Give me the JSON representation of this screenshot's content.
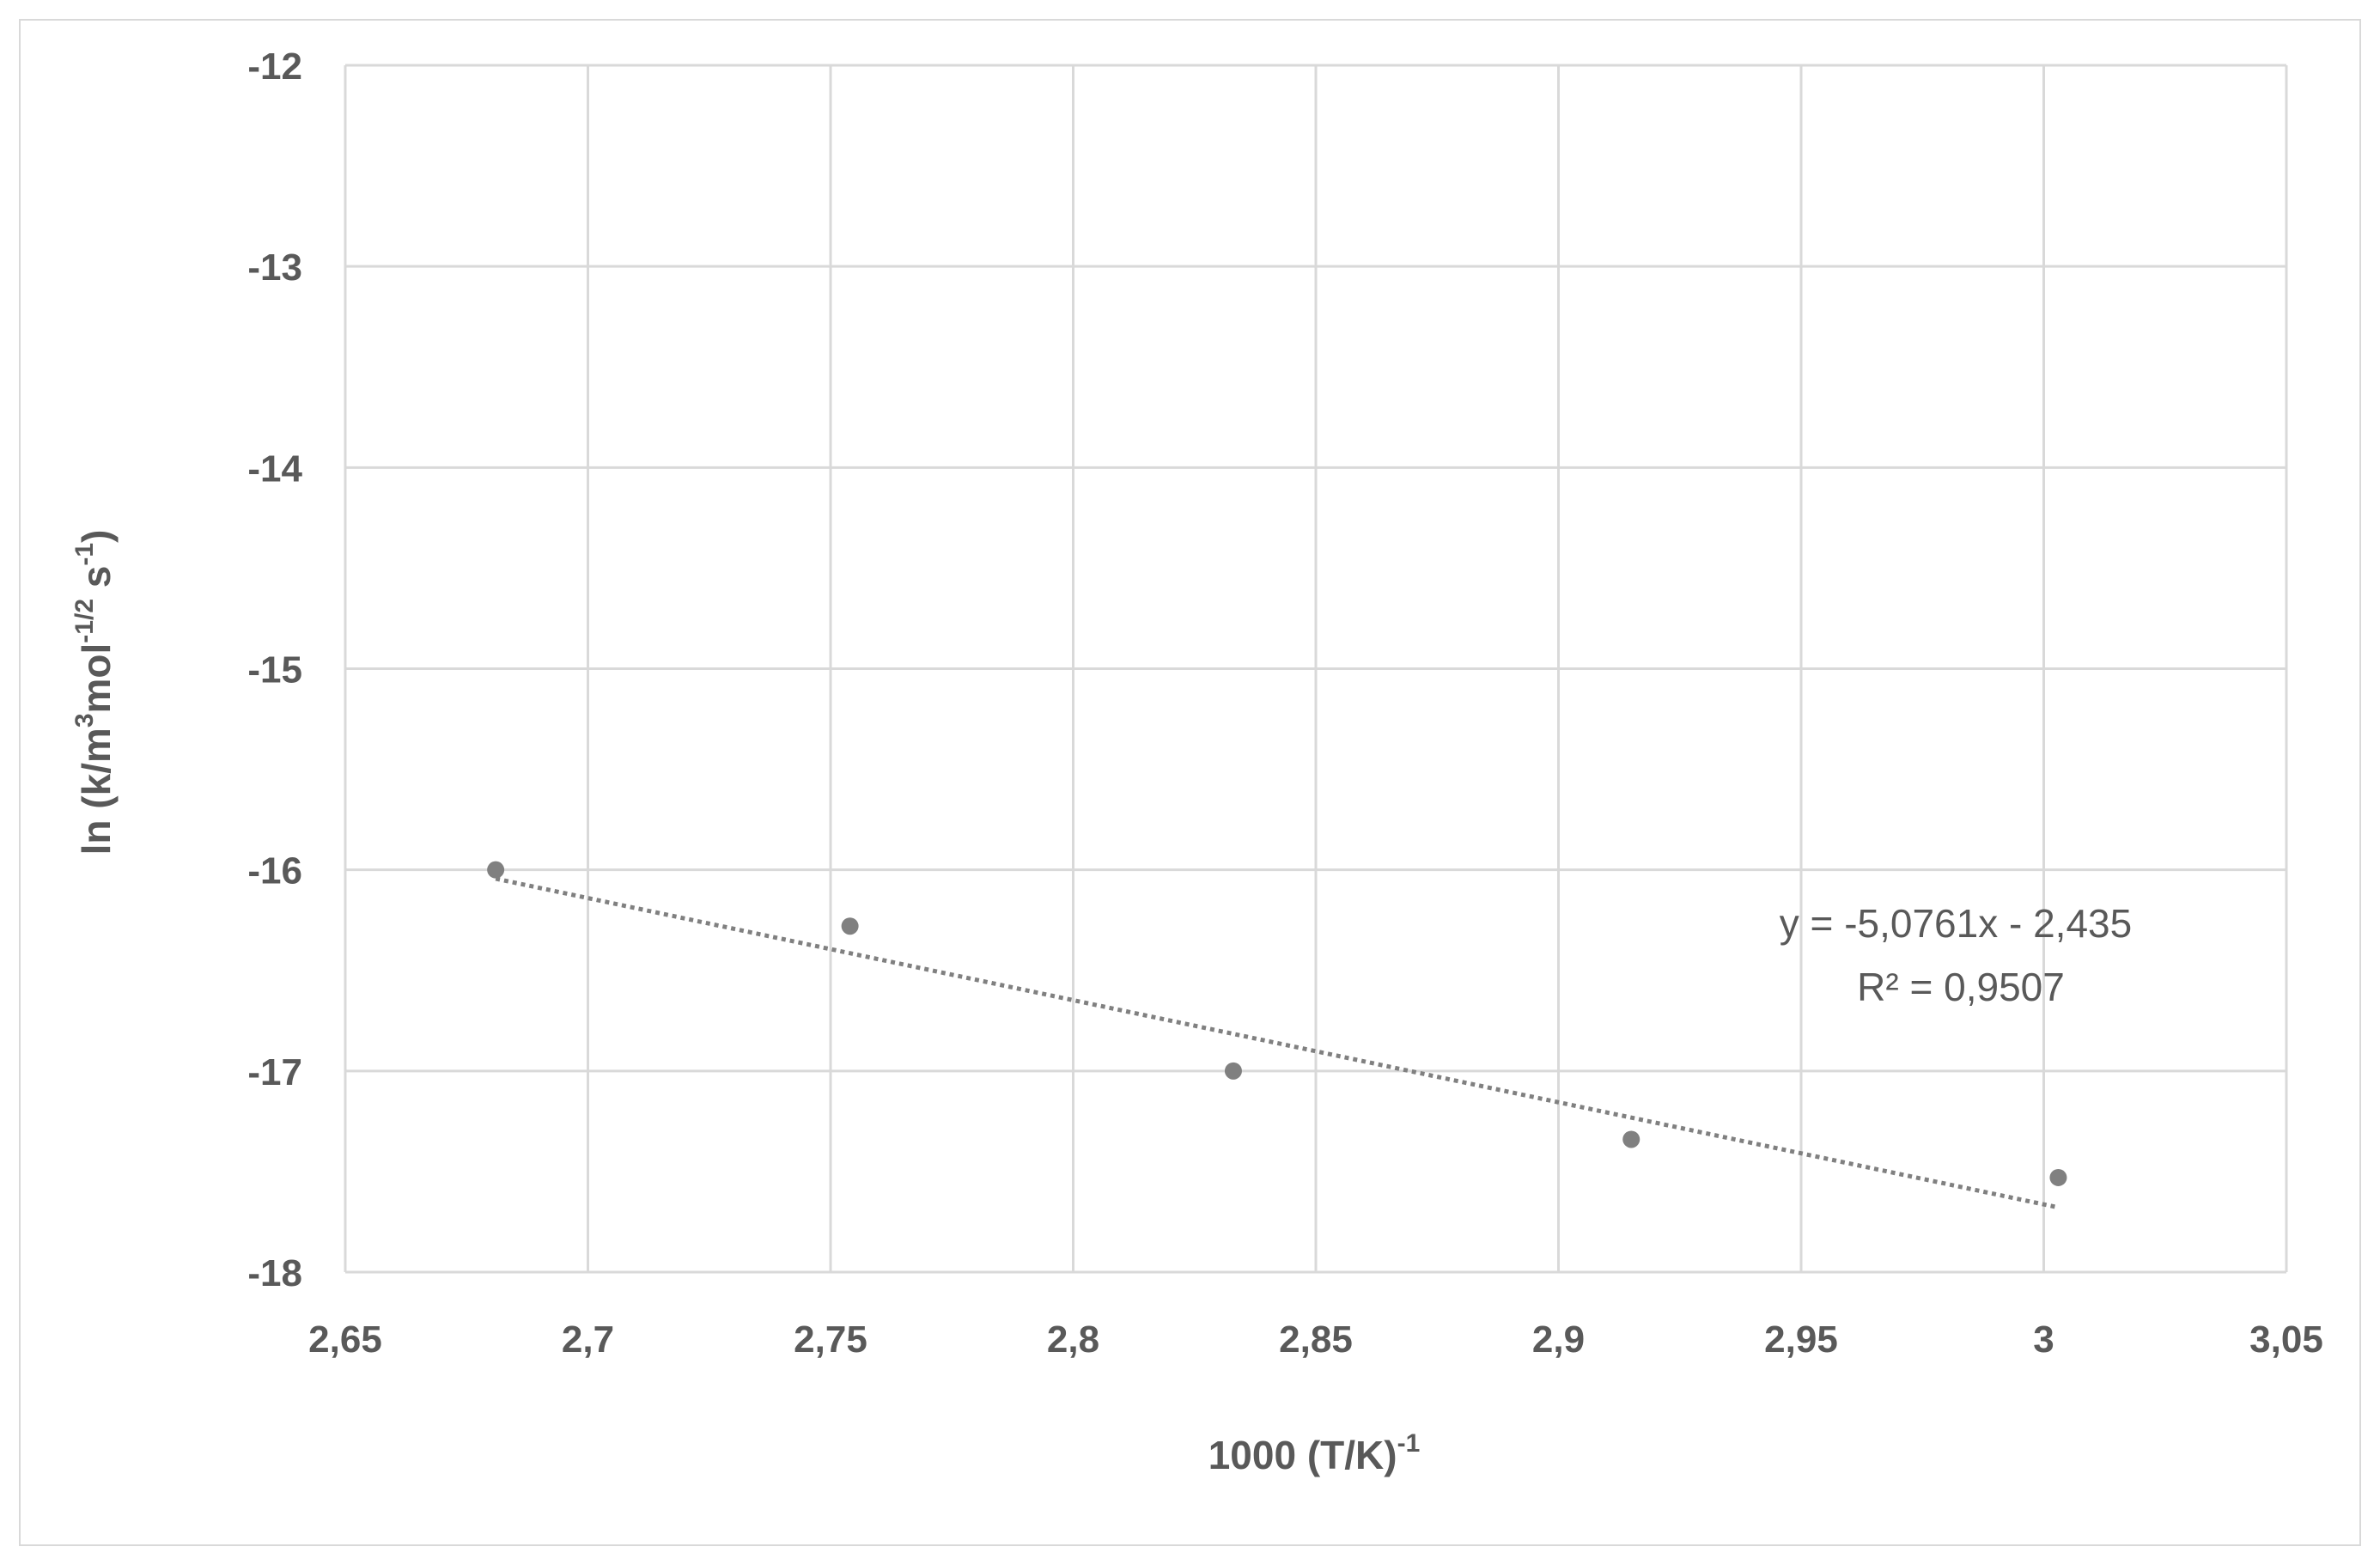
{
  "chart_data": {
    "type": "scatter",
    "xlabel": {
      "main": "1000 (T/K)",
      "sup": "-1"
    },
    "ylabel": {
      "pre": "ln (k/m",
      "sup1": "3",
      "mid": "mol",
      "sup2": "-1/2",
      "mid2": " s",
      "sup3": "-1",
      "post": ")"
    },
    "xlim": [
      2.65,
      3.05
    ],
    "ylim": [
      -18,
      -12
    ],
    "x_ticks": [
      "2,65",
      "2,7",
      "2,75",
      "2,8",
      "2,85",
      "2,9",
      "2,95",
      "3",
      "3,05"
    ],
    "y_ticks": [
      "-12",
      "-13",
      "-14",
      "-15",
      "-16",
      "-17",
      "-18"
    ],
    "grid": true,
    "series": [
      {
        "points": [
          {
            "x": 2.681,
            "y": -16.0
          },
          {
            "x": 2.754,
            "y": -16.28
          },
          {
            "x": 2.833,
            "y": -17.0
          },
          {
            "x": 2.915,
            "y": -17.34
          },
          {
            "x": 3.003,
            "y": -17.53
          }
        ],
        "color": "#808080"
      }
    ],
    "trendline": {
      "type": "linear",
      "slope": -5.0761,
      "intercept": -2.435,
      "x_range": [
        2.681,
        3.003
      ],
      "color": "#808080",
      "equation": "y = -5,0761x - 2,435",
      "r_squared": "R² = 0,9507"
    }
  }
}
